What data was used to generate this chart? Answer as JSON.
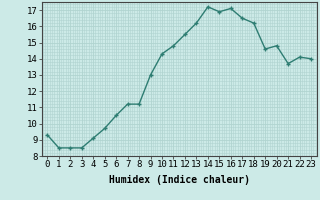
{
  "title": "",
  "xlabel": "Humidex (Indice chaleur)",
  "x": [
    0,
    1,
    2,
    3,
    4,
    5,
    6,
    7,
    8,
    9,
    10,
    11,
    12,
    13,
    14,
    15,
    16,
    17,
    18,
    19,
    20,
    21,
    22,
    23
  ],
  "y": [
    9.3,
    8.5,
    8.5,
    8.5,
    9.1,
    9.7,
    10.5,
    11.2,
    11.2,
    13.0,
    14.3,
    14.8,
    15.5,
    16.2,
    17.2,
    16.9,
    17.1,
    16.5,
    16.2,
    14.6,
    14.8,
    13.7,
    14.1,
    14.0
  ],
  "line_color": "#2e7d72",
  "marker": "+",
  "bg_color": "#cceae7",
  "grid_color": "#b0d4d0",
  "ylim": [
    8,
    17.5
  ],
  "xlim": [
    -0.5,
    23.5
  ],
  "yticks": [
    8,
    9,
    10,
    11,
    12,
    13,
    14,
    15,
    16,
    17
  ],
  "xticks": [
    0,
    1,
    2,
    3,
    4,
    5,
    6,
    7,
    8,
    9,
    10,
    11,
    12,
    13,
    14,
    15,
    16,
    17,
    18,
    19,
    20,
    21,
    22,
    23
  ],
  "xtick_labels": [
    "0",
    "1",
    "2",
    "3",
    "4",
    "5",
    "6",
    "7",
    "8",
    "9",
    "10",
    "11",
    "12",
    "13",
    "14",
    "15",
    "16",
    "17",
    "18",
    "19",
    "20",
    "21",
    "22",
    "23"
  ],
  "xlabel_fontsize": 7,
  "tick_fontsize": 6.5,
  "line_width": 1.0,
  "marker_size": 3
}
